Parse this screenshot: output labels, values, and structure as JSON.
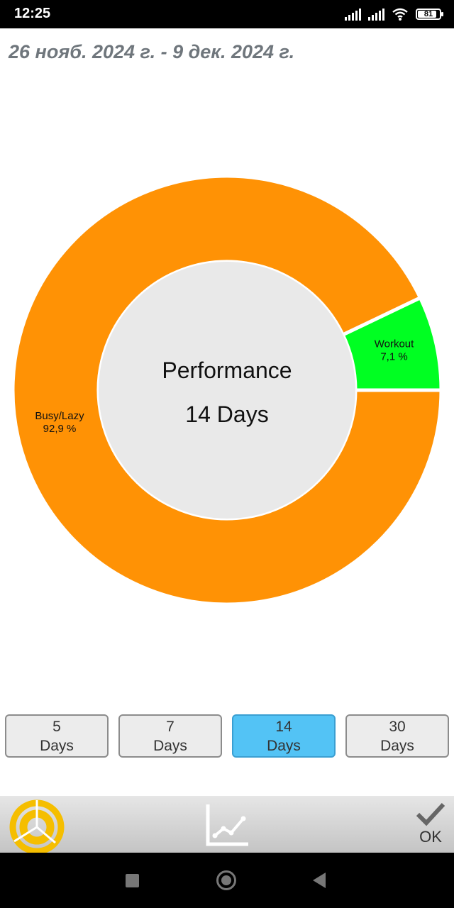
{
  "status_bar": {
    "time": "12:25",
    "battery": "81"
  },
  "header": {
    "date_range": "26 нояб. 2024 г. - 9 дек. 2024 г."
  },
  "center": {
    "title": "Performance",
    "subtitle": "14 Days"
  },
  "chart_data": {
    "type": "pie",
    "donut": true,
    "slices": [
      {
        "label": "Workout",
        "value": 7.1,
        "display": "7,1 %",
        "color": "#00FF22"
      },
      {
        "label": "Busy/Lazy",
        "value": 92.9,
        "display": "92,9 %",
        "color": "#FF9205"
      }
    ],
    "hole_color": "#E9E9E9",
    "legend": "none"
  },
  "periods": [
    {
      "num": "5",
      "unit": "Days",
      "active": false
    },
    {
      "num": "7",
      "unit": "Days",
      "active": false
    },
    {
      "num": "14",
      "unit": "Days",
      "active": true
    },
    {
      "num": "30",
      "unit": "Days",
      "active": false
    }
  ],
  "toolbar": {
    "pie_icon": "pie-chart-icon",
    "graph_icon": "line-graph-icon",
    "ok_icon": "checkmark-icon",
    "ok_label": "OK",
    "pie_color": "#F5BE00"
  },
  "nav": {
    "recents": "square-icon",
    "home": "circle-icon",
    "back": "triangle-back-icon"
  }
}
